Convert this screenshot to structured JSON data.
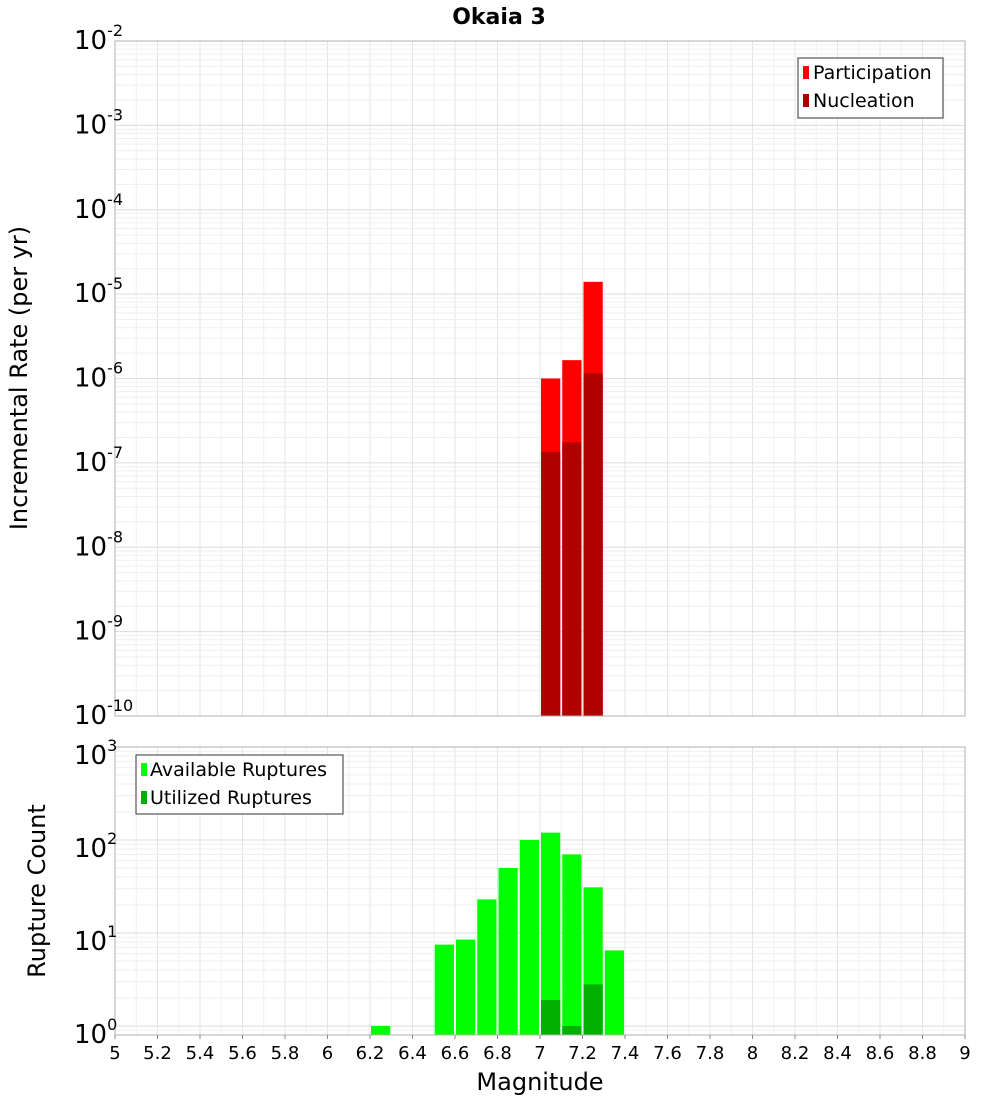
{
  "chart_data": [
    {
      "type": "bar",
      "title": "Okaia 3",
      "xlabel": "",
      "ylabel": "Incremental Rate (per yr)",
      "xlim": [
        5,
        9
      ],
      "ylim": [
        1e-10,
        0.01
      ],
      "yscale": "log",
      "grid": true,
      "legend_position": "top-right",
      "series": [
        {
          "name": "Participation",
          "color": "#ff0000",
          "x": [
            7.05,
            7.15,
            7.25
          ],
          "values": [
            1e-06,
            1.65e-06,
            1.4e-05
          ]
        },
        {
          "name": "Nucleation",
          "color": "#b00000",
          "x": [
            7.05,
            7.15,
            7.25
          ],
          "values": [
            1.35e-07,
            1.75e-07,
            1.15e-06
          ]
        }
      ],
      "ytick_labels": [
        {
          "base": "10",
          "exp": "-10"
        },
        {
          "base": "10",
          "exp": "-9"
        },
        {
          "base": "10",
          "exp": "-8"
        },
        {
          "base": "10",
          "exp": "-7"
        },
        {
          "base": "10",
          "exp": "-6"
        },
        {
          "base": "10",
          "exp": "-5"
        },
        {
          "base": "10",
          "exp": "-4"
        },
        {
          "base": "10",
          "exp": "-3"
        },
        {
          "base": "10",
          "exp": "-2"
        }
      ]
    },
    {
      "type": "bar",
      "title": "",
      "xlabel": "Magnitude",
      "ylabel": "Rupture Count",
      "xlim": [
        5,
        9
      ],
      "ylim": [
        0.8,
        1000
      ],
      "yscale": "log",
      "grid": true,
      "legend_position": "top-left",
      "series": [
        {
          "name": "Available Ruptures",
          "color": "#00ff00",
          "x": [
            6.25,
            6.55,
            6.65,
            6.75,
            6.85,
            6.95,
            7.05,
            7.15,
            7.25,
            7.35
          ],
          "values": [
            1,
            7.5,
            8.5,
            23,
            50,
            100,
            120,
            70,
            31,
            6.5
          ]
        },
        {
          "name": "Utilized Ruptures",
          "color": "#00b000",
          "x": [
            7.05,
            7.15,
            7.25
          ],
          "values": [
            1.9,
            1,
            2.8
          ]
        }
      ],
      "xtick_labels": [
        "5",
        "5.2",
        "5.4",
        "5.6",
        "5.8",
        "6",
        "6.2",
        "6.4",
        "6.6",
        "6.8",
        "7",
        "7.2",
        "7.4",
        "7.6",
        "7.8",
        "8",
        "8.2",
        "8.4",
        "8.6",
        "8.8",
        "9"
      ],
      "ytick_labels": [
        {
          "base": "10",
          "exp": "0"
        },
        {
          "base": "10",
          "exp": "1"
        },
        {
          "base": "10",
          "exp": "2"
        },
        {
          "base": "10",
          "exp": "3"
        }
      ]
    }
  ]
}
